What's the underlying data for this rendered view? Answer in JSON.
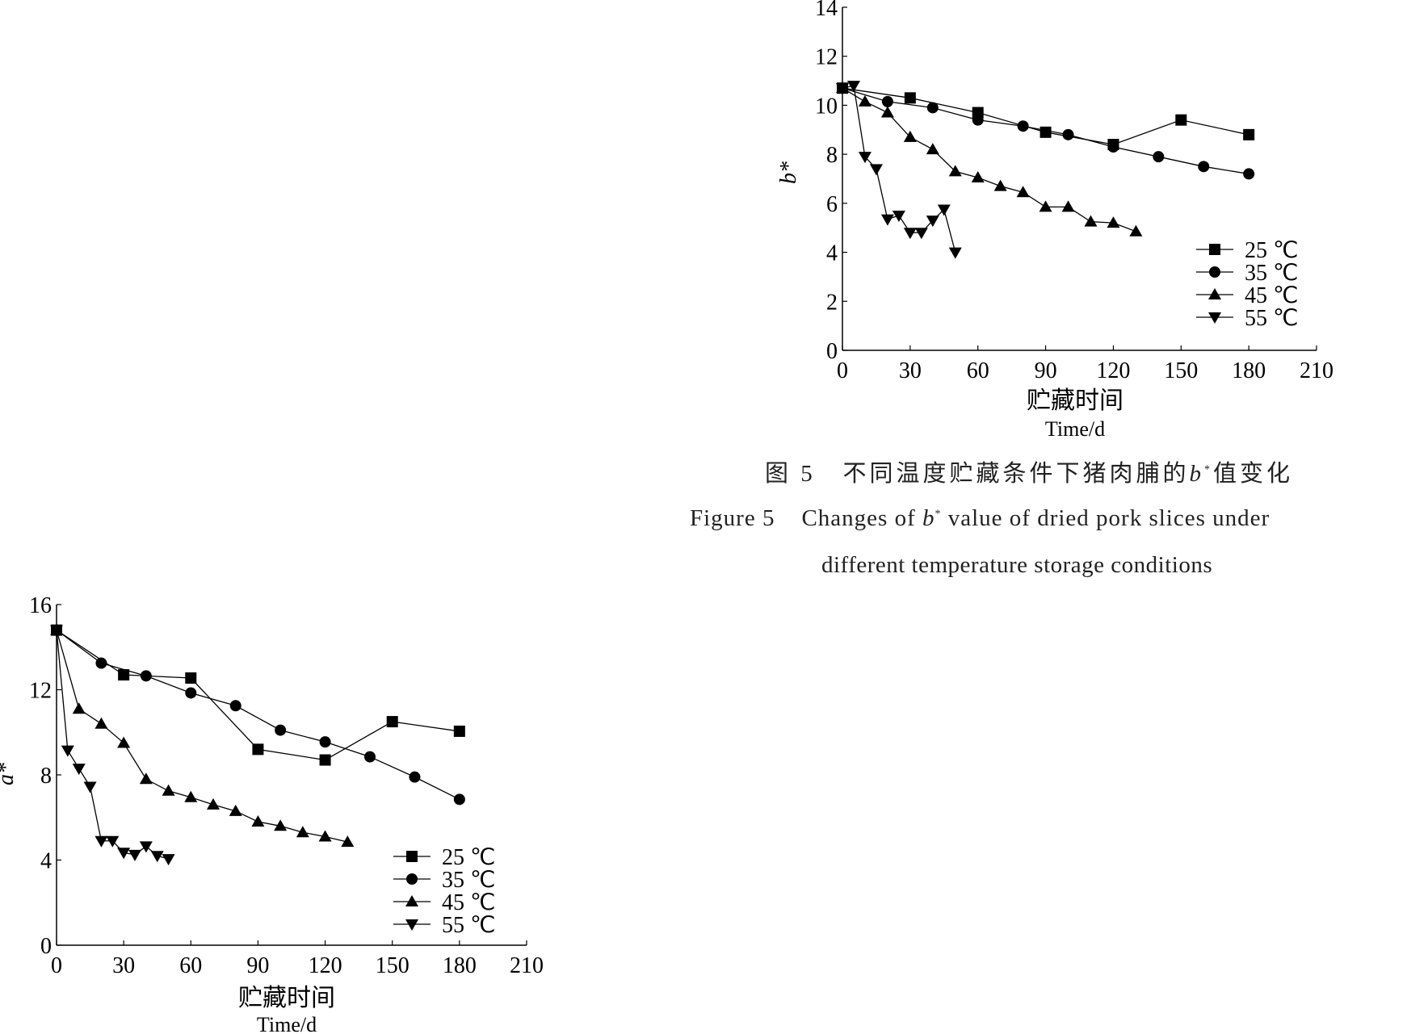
{
  "chart_data": [
    {
      "type": "line",
      "id": "b",
      "ylabel": "b*",
      "xlabel_cn": "贮藏时间",
      "xlabel_en": "Time/d",
      "xlim": [
        0,
        210
      ],
      "ylim": [
        0,
        14
      ],
      "xticks": [
        0,
        30,
        60,
        90,
        120,
        150,
        180,
        210
      ],
      "yticks": [
        0,
        2,
        4,
        6,
        8,
        10,
        12,
        14
      ],
      "grid": false,
      "legend_position": "lower-right",
      "series": [
        {
          "name": "25 ℃",
          "marker": "square",
          "x": [
            0,
            30,
            60,
            90,
            120,
            150,
            180
          ],
          "y": [
            10.7,
            10.3,
            9.7,
            8.9,
            8.4,
            9.4,
            8.8
          ]
        },
        {
          "name": "35 ℃",
          "marker": "circle",
          "x": [
            0,
            20,
            40,
            60,
            80,
            100,
            120,
            140,
            160,
            180
          ],
          "y": [
            10.7,
            10.15,
            9.9,
            9.4,
            9.15,
            8.8,
            8.3,
            7.9,
            7.5,
            7.2
          ]
        },
        {
          "name": "45 ℃",
          "marker": "triangle-up",
          "x": [
            0,
            10,
            20,
            30,
            40,
            50,
            60,
            70,
            80,
            90,
            100,
            110,
            120,
            130
          ],
          "y": [
            10.7,
            10.15,
            9.7,
            8.7,
            8.2,
            7.3,
            7.05,
            6.7,
            6.45,
            5.85,
            5.85,
            5.25,
            5.2,
            4.85
          ]
        },
        {
          "name": "55 ℃",
          "marker": "triangle-down",
          "x": [
            0,
            5,
            10,
            15,
            20,
            25,
            30,
            35,
            40,
            45,
            50
          ],
          "y": [
            10.7,
            10.8,
            7.9,
            7.4,
            5.35,
            5.5,
            4.8,
            4.8,
            5.3,
            5.75,
            4.0
          ]
        }
      ]
    },
    {
      "type": "line",
      "id": "a",
      "ylabel": "a*",
      "xlabel_cn": "贮藏时间",
      "xlabel_en": "Time/d",
      "xlim": [
        0,
        210
      ],
      "ylim": [
        0,
        16
      ],
      "xticks": [
        0,
        30,
        60,
        90,
        120,
        150,
        180,
        210
      ],
      "yticks": [
        0,
        4,
        8,
        12,
        16
      ],
      "grid": false,
      "legend_position": "lower-right",
      "series": [
        {
          "name": "25 ℃",
          "marker": "square",
          "x": [
            0,
            30,
            60,
            90,
            120,
            150,
            180
          ],
          "y": [
            14.8,
            12.7,
            12.55,
            9.2,
            8.7,
            10.5,
            10.05
          ]
        },
        {
          "name": "35 ℃",
          "marker": "circle",
          "x": [
            0,
            20,
            40,
            60,
            80,
            100,
            120,
            140,
            160,
            180
          ],
          "y": [
            14.8,
            13.25,
            12.65,
            11.85,
            11.25,
            10.1,
            9.55,
            8.85,
            7.9,
            6.85
          ]
        },
        {
          "name": "45 ℃",
          "marker": "triangle-up",
          "x": [
            0,
            10,
            20,
            30,
            40,
            50,
            60,
            70,
            80,
            90,
            100,
            110,
            120,
            130
          ],
          "y": [
            14.8,
            11.1,
            10.4,
            9.5,
            7.8,
            7.25,
            6.95,
            6.6,
            6.3,
            5.8,
            5.6,
            5.3,
            5.1,
            4.85
          ]
        },
        {
          "name": "55 ℃",
          "marker": "triangle-down",
          "x": [
            0,
            5,
            10,
            15,
            20,
            25,
            30,
            35,
            40,
            45,
            50
          ],
          "y": [
            14.8,
            9.15,
            8.3,
            7.45,
            4.9,
            4.9,
            4.35,
            4.25,
            4.65,
            4.2,
            4.05
          ]
        }
      ]
    }
  ],
  "caption": {
    "cn_prefix": "图 5",
    "cn_text": "不同温度贮藏条件下猪肉脯的",
    "cn_var": "b",
    "cn_sup": "*",
    "cn_suffix": "值变化",
    "en_prefix": "Figure 5",
    "en_text1": "Changes of",
    "en_var": "b",
    "en_sup": "*",
    "en_text2": "value of dried pork slices under",
    "en_line2": "different temperature storage conditions"
  }
}
